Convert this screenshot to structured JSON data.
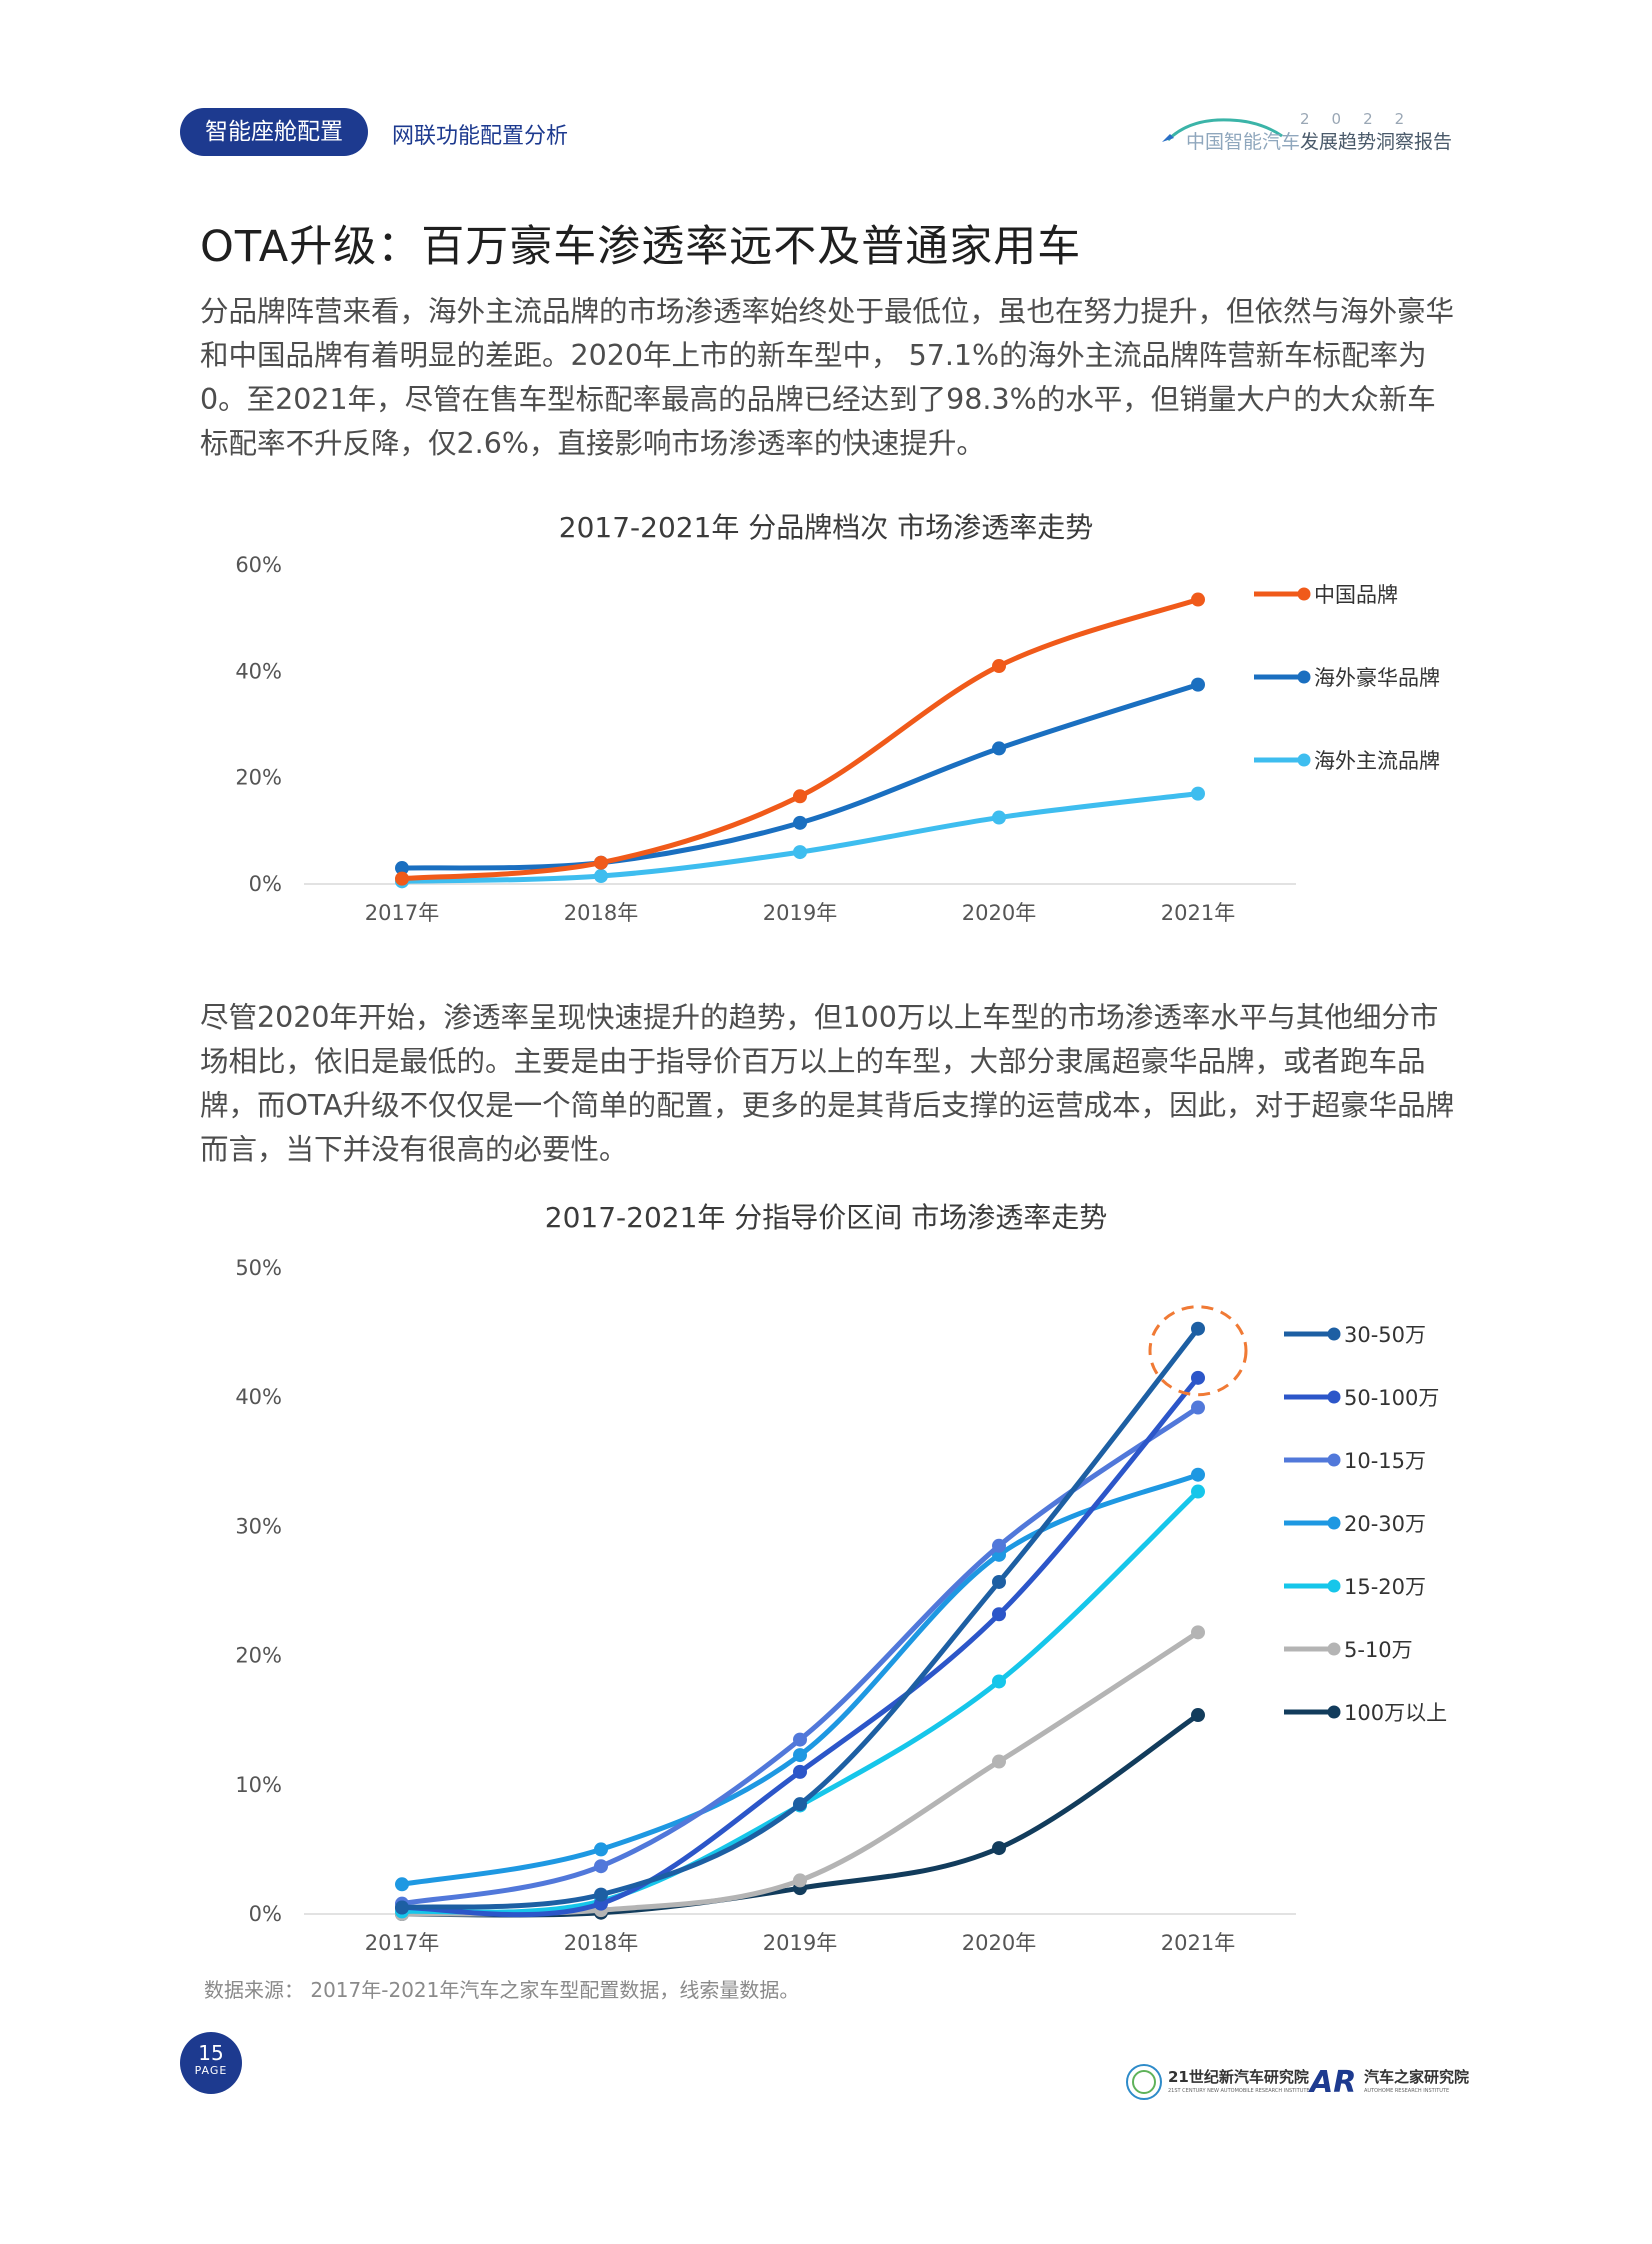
{
  "header": {
    "section_label": "智能座舱配置",
    "subsection": "网联功能配置分析",
    "report_year": "2022",
    "report_title_light": "中国智能汽车",
    "report_title_bold": "发展趋势洞察报告"
  },
  "title": "OTA升级：百万豪车渗透率远不及普通家用车",
  "paragraph1": "分品牌阵营来看，海外主流品牌的市场渗透率始终处于最低位，虽也在努力提升，但依然与海外豪华和中国品牌有着明显的差距。2020年上市的新车型中， 57.1%的海外主流品牌阵营新车标配率为0。至2021年，尽管在售车型标配率最高的品牌已经达到了98.3%的水平，但销量大户的大众新车标配率不升反降，仅2.6%，直接影响市场渗透率的快速提升。",
  "paragraph2": "尽管2020年开始，渗透率呈现快速提升的趋势，但100万以上车型的市场渗透率水平与其他细分市场相比，依旧是最低的。主要是由于指导价百万以上的车型，大部分隶属超豪华品牌，或者跑车品牌，而OTA升级不仅仅是一个简单的配置，更多的是其背后支撑的运营成本，因此，对于超豪华品牌而言，当下并没有很高的必要性。",
  "chart_data": [
    {
      "type": "line",
      "title": "2017-2021年 分品牌档次 市场渗透率走势",
      "categories": [
        "2017年",
        "2018年",
        "2019年",
        "2020年",
        "2021年"
      ],
      "ylim": [
        0,
        60
      ],
      "yticks": [
        "0%",
        "20%",
        "40%",
        "60%"
      ],
      "ytick_values": [
        0,
        20,
        40,
        60
      ],
      "grid": false,
      "legend_position": "right",
      "series": [
        {
          "name": "中国品牌",
          "color": "#f05a1a",
          "values": [
            1.0,
            4.0,
            16.5,
            41.0,
            53.5
          ]
        },
        {
          "name": "海外豪华品牌",
          "color": "#1a6fc0",
          "values": [
            3.0,
            4.0,
            11.5,
            25.5,
            37.5
          ]
        },
        {
          "name": "海外主流品牌",
          "color": "#3ebdef",
          "values": [
            0.5,
            1.5,
            6.0,
            12.5,
            17.0
          ]
        }
      ]
    },
    {
      "type": "line",
      "title": "2017-2021年 分指导价区间 市场渗透率走势",
      "categories": [
        "2017年",
        "2018年",
        "2019年",
        "2020年",
        "2021年"
      ],
      "ylim": [
        0,
        50
      ],
      "yticks": [
        "0%",
        "10%",
        "20%",
        "30%",
        "40%",
        "50%"
      ],
      "ytick_values": [
        0,
        10,
        20,
        30,
        40,
        50
      ],
      "grid": false,
      "legend_position": "right",
      "highlight": {
        "series": "30-50万",
        "category": "2021年",
        "color": "#f07a35"
      },
      "series": [
        {
          "name": "30-50万",
          "color": "#1d5fa3",
          "values": [
            0.5,
            1.5,
            8.5,
            25.7,
            45.3
          ]
        },
        {
          "name": "50-100万",
          "color": "#2c56c9",
          "values": [
            0.5,
            0.8,
            11.0,
            23.2,
            41.5
          ]
        },
        {
          "name": "10-15万",
          "color": "#5178da",
          "values": [
            0.8,
            3.7,
            13.5,
            28.5,
            39.2
          ]
        },
        {
          "name": "20-30万",
          "color": "#1e98e2",
          "values": [
            2.3,
            5.0,
            12.3,
            27.8,
            34.0
          ]
        },
        {
          "name": "15-20万",
          "color": "#16c6ea",
          "values": [
            0.2,
            1.0,
            8.4,
            18.0,
            32.7
          ]
        },
        {
          "name": "5-10万",
          "color": "#b4b4b4",
          "values": [
            0.0,
            0.3,
            2.6,
            11.8,
            21.8
          ]
        },
        {
          "name": "100万以上",
          "color": "#123c5c",
          "values": [
            0.0,
            0.1,
            2.0,
            5.1,
            15.4
          ]
        }
      ]
    }
  ],
  "source": "数据来源： 2017年-2021年汽车之家车型配置数据，线索量数据。",
  "footer": {
    "page_number": "15",
    "page_word": "PAGE",
    "org1": "21世纪新汽车研究院",
    "org1_sub": "21ST CENTURY NEW AUTOMOBILE RESEARCH INSTITUTE",
    "org2_mark": "AR",
    "org2": "汽车之家研究院",
    "org2_sub": "AUTOHOME RESEARCH INSTITUTE"
  }
}
